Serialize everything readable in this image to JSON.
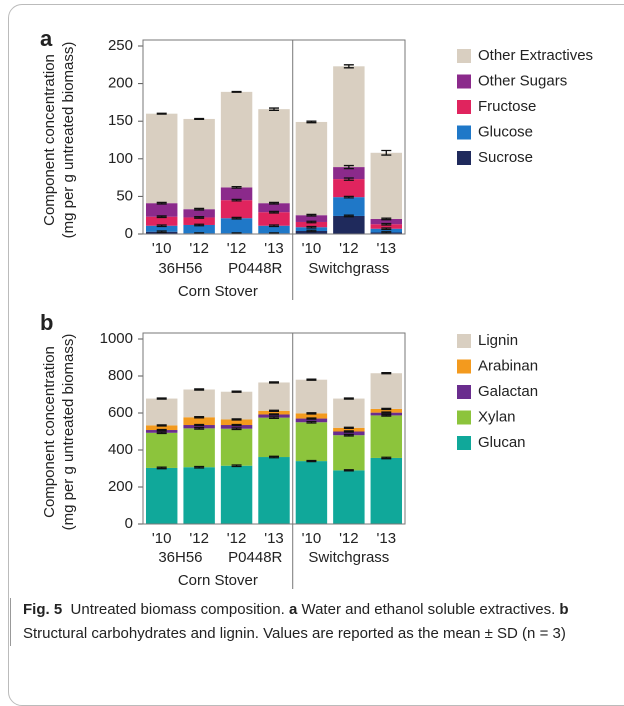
{
  "charts": [
    {
      "chart_data": {
        "type": "stacked-bar",
        "panel_label": "a",
        "ylabel": [
          "Component concentration",
          "(mg per g untreated biomass)"
        ],
        "categories": [
          "'10",
          "'12",
          "'12",
          "'13",
          "'10",
          "'12",
          "'13"
        ],
        "groups": [
          {
            "label": "36H56",
            "size": 2
          },
          {
            "label": "P0448R",
            "size": 2
          },
          {
            "label": "Switchgrass",
            "size": 3
          }
        ],
        "supergroups": [
          {
            "label": "Corn Stover",
            "size": 4
          }
        ],
        "ylim": [
          0,
          250
        ],
        "yticks": [
          0,
          50,
          100,
          150,
          200,
          250
        ],
        "series": [
          {
            "name": "Sucrose",
            "color": "#1f2a5c",
            "values": [
              3,
              1,
              1,
              1,
              4,
              24,
              2
            ],
            "errors": [
              1,
              0.5,
              0.5,
              0.5,
              1,
              1,
              1
            ]
          },
          {
            "name": "Glucose",
            "color": "#1f78c8",
            "values": [
              8,
              11,
              20,
              10,
              5,
              25,
              5
            ],
            "errors": [
              1,
              1,
              1,
              1,
              1,
              1,
              1
            ]
          },
          {
            "name": "Fructose",
            "color": "#e0245e",
            "values": [
              12,
              10,
              24,
              18,
              7,
              24,
              6
            ],
            "errors": [
              1,
              1,
              1,
              1,
              1,
              1.5,
              1
            ]
          },
          {
            "name": "Other Sugars",
            "color": "#8b2a8b",
            "values": [
              18,
              11,
              17,
              12,
              9,
              16,
              7
            ],
            "errors": [
              1,
              1,
              1,
              1,
              1,
              2,
              1
            ]
          },
          {
            "name": "Other Extractives",
            "color": "#d9cfc1",
            "values": [
              119,
              120,
              127,
              125,
              124,
              134,
              88
            ],
            "errors": [
              0.5,
              0.5,
              0.5,
              1.5,
              1,
              2,
              3
            ]
          }
        ]
      }
    },
    {
      "chart_data": {
        "type": "stacked-bar",
        "panel_label": "b",
        "ylabel": [
          "Component concentration",
          "(mg per g untreated biomass)"
        ],
        "categories": [
          "'10",
          "'12",
          "'12",
          "'13",
          "'10",
          "'12",
          "'13"
        ],
        "groups": [
          {
            "label": "36H56",
            "size": 2
          },
          {
            "label": "P0448R",
            "size": 2
          },
          {
            "label": "Switchgrass",
            "size": 3
          }
        ],
        "supergroups": [
          {
            "label": "Corn Stover",
            "size": 4
          }
        ],
        "ylim": [
          0,
          1000
        ],
        "yticks": [
          0,
          200,
          400,
          600,
          800,
          1000
        ],
        "series": [
          {
            "name": "Glucan",
            "color": "#10a89a",
            "values": [
              303,
              307,
              315,
              362,
              340,
              290,
              357
            ],
            "errors": [
              4,
              4,
              4,
              4,
              3,
              3,
              4
            ]
          },
          {
            "name": "Xylan",
            "color": "#8cc43c",
            "values": [
              190,
              210,
              200,
              213,
              210,
              190,
              230
            ],
            "errors": [
              4,
              4,
              4,
              4,
              4,
              4,
              4
            ]
          },
          {
            "name": "Galactan",
            "color": "#6a2d8e",
            "values": [
              15,
              18,
              20,
              17,
              20,
              20,
              15
            ],
            "errors": [
              3,
              3,
              3,
              3,
              3,
              3,
              3
            ]
          },
          {
            "name": "Arabinan",
            "color": "#f39a1e",
            "values": [
              25,
              42,
              30,
              20,
              28,
              20,
              20
            ],
            "errors": [
              3,
              3,
              3,
              3,
              3,
              3,
              3
            ]
          },
          {
            "name": "Lignin",
            "color": "#d9cfc1",
            "values": [
              145,
              150,
              150,
              153,
              182,
              158,
              193
            ],
            "errors": [
              3,
              3,
              3,
              3,
              3,
              3,
              3
            ]
          }
        ]
      }
    }
  ],
  "caption": {
    "label": "Fig. 5",
    "title": "Untreated biomass composition.",
    "a": "a",
    "a_text": "Water and ethanol soluble extractives.",
    "b": "b",
    "b_text": "Structural carbohydrates and lignin. Values are reported as the mean ± SD (n = 3)"
  }
}
